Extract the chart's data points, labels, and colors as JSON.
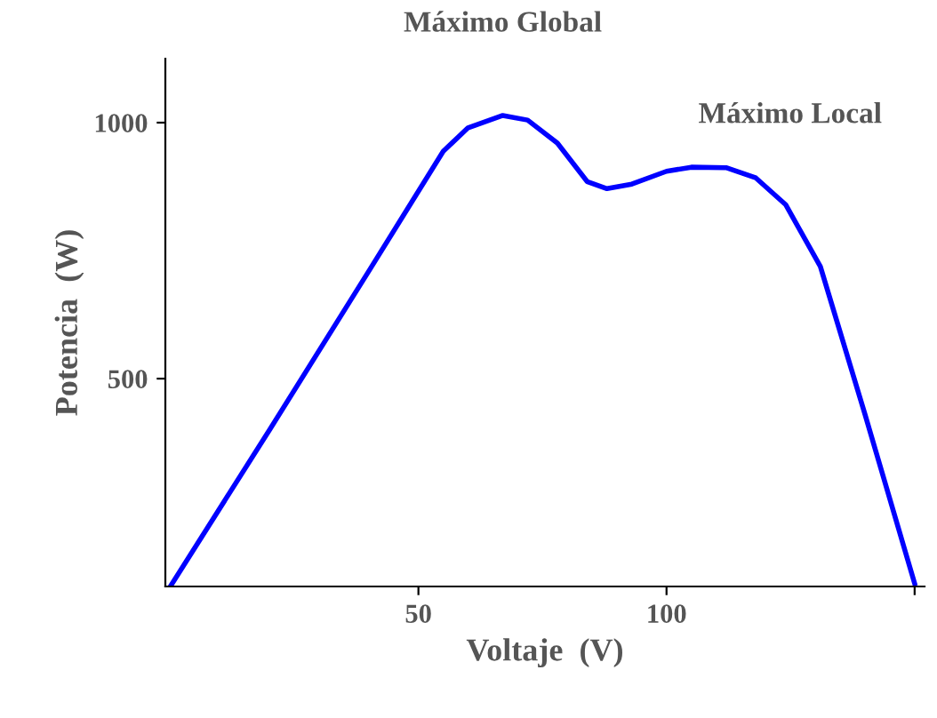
{
  "chart_data": {
    "type": "line",
    "xlabel": "Voltaje  (V)",
    "ylabel": "Potencia  (W)",
    "annotations": [
      {
        "text": "Máximo Global",
        "x": 67,
        "y": 1014
      },
      {
        "text": "Máximo Local",
        "x": 105,
        "y": 913
      }
    ],
    "x": [
      0,
      20,
      40,
      55,
      60,
      67,
      72,
      78,
      84,
      88,
      93,
      100,
      105,
      112,
      118,
      124,
      131,
      140,
      150
    ],
    "series": [
      {
        "color": "#0000ff",
        "values": [
          94,
          400,
          710,
          944,
          990,
          1014,
          1005,
          960,
          885,
          871,
          880,
          905,
          913,
          912,
          892,
          840,
          719,
          430,
          100
        ]
      }
    ],
    "xlim": [
      -1,
      152
    ],
    "ylim": [
      94,
      1125
    ],
    "xticks": [
      50,
      100,
      {
        "value": 150,
        "label": null
      }
    ],
    "yticks": [
      500,
      1000
    ],
    "grid": false,
    "legend": false,
    "marker": "none",
    "line_style": "solid"
  }
}
